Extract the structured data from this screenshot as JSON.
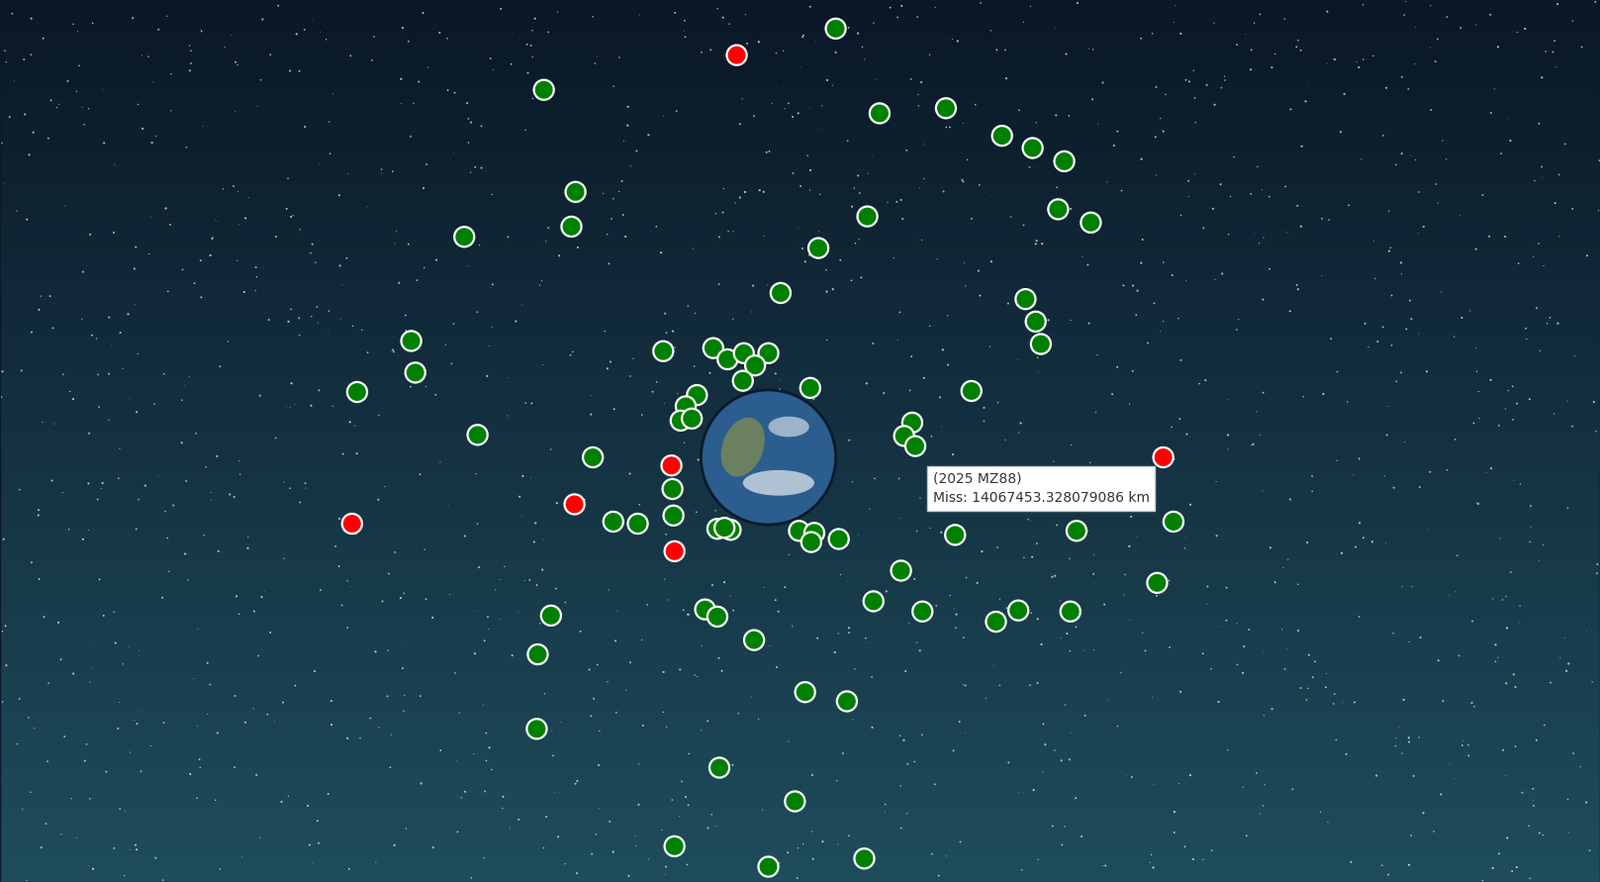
{
  "chart_data": {
    "type": "scatter",
    "annotations": [
      "(2025 MZ88)",
      "Miss: 14067453.328079086 km"
    ],
    "x": [
      819,
      533,
      862,
      927,
      982,
      1012,
      1043,
      564,
      560,
      455,
      850,
      1037,
      1069,
      802,
      765,
      1005,
      1015,
      1020,
      403,
      407,
      350,
      650,
      699,
      713,
      729,
      753,
      740,
      728,
      794,
      952,
      683,
      672,
      667,
      678,
      894,
      886,
      897,
      468,
      581,
      659,
      660,
      601,
      625,
      703,
      716,
      710,
      783,
      798,
      795,
      822,
      936,
      1055,
      1150,
      1134,
      883,
      856,
      904,
      976,
      998,
      1049,
      540,
      527,
      691,
      703,
      739,
      526,
      789,
      830,
      705,
      779,
      661,
      753,
      847,
      722,
      1140,
      658,
      563,
      345,
      661
    ],
    "y": [
      28,
      88,
      111,
      106,
      133,
      145,
      158,
      188,
      222,
      232,
      212,
      205,
      218,
      243,
      287,
      293,
      315,
      337,
      334,
      365,
      384,
      344,
      341,
      352,
      346,
      346,
      358,
      373,
      380,
      383,
      387,
      398,
      412,
      410,
      414,
      427,
      437,
      426,
      448,
      479,
      505,
      511,
      513,
      518,
      519,
      517,
      520,
      522,
      531,
      528,
      524,
      520,
      511,
      571,
      559,
      589,
      599,
      609,
      598,
      599,
      603,
      641,
      597,
      604,
      627,
      714,
      678,
      687,
      752,
      785,
      829,
      849,
      841,
      54,
      448,
      456,
      494,
      513,
      540
    ],
    "colors": [
      "green",
      "green",
      "green",
      "green",
      "green",
      "green",
      "green",
      "green",
      "green",
      "green",
      "green",
      "green",
      "green",
      "green",
      "green",
      "green",
      "green",
      "green",
      "green",
      "green",
      "green",
      "green",
      "green",
      "green",
      "green",
      "green",
      "green",
      "green",
      "green",
      "green",
      "green",
      "green",
      "green",
      "green",
      "green",
      "green",
      "green",
      "green",
      "green",
      "green",
      "green",
      "green",
      "green",
      "green",
      "green",
      "green",
      "green",
      "green",
      "green",
      "green",
      "green",
      "green",
      "green",
      "green",
      "green",
      "green",
      "green",
      "green",
      "green",
      "green",
      "green",
      "green",
      "green",
      "green",
      "green",
      "green",
      "green",
      "green",
      "green",
      "green",
      "green",
      "green",
      "green",
      "red",
      "red",
      "red",
      "red",
      "red",
      "red"
    ],
    "xlim": [
      0,
      1568
    ],
    "ylim": [
      864,
      0
    ],
    "tick_labels": false
  }
}
